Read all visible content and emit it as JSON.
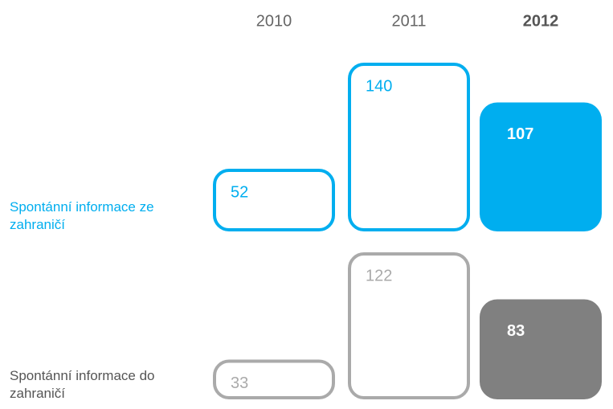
{
  "chart_data": {
    "type": "bar",
    "categories": [
      "2010",
      "2011",
      "2012"
    ],
    "highlight": 2,
    "series": [
      {
        "name": "Spontánní informace ze zahraničí",
        "color": "#00aeef",
        "highlight_color": "#00aeef",
        "values": [
          52,
          140,
          107
        ]
      },
      {
        "name": "Spontánní informace do zahraničí",
        "color": "#aaaaaa",
        "highlight_color": "#808080",
        "values": [
          33,
          122,
          83
        ]
      }
    ]
  }
}
